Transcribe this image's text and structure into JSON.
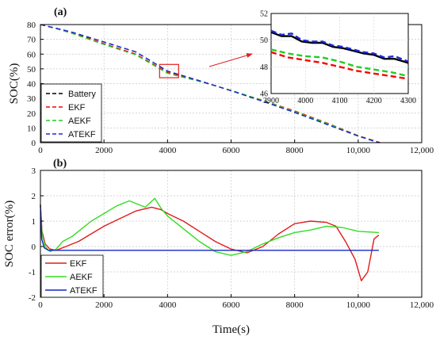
{
  "x_title": "Time(s)",
  "chart_data": [
    {
      "type": "line",
      "panel_label": "(a)",
      "ylabel": "SOC(%)",
      "xlim": [
        0,
        12000
      ],
      "ylim": [
        0,
        80
      ],
      "x_ticks": [
        0,
        2000,
        4000,
        6000,
        8000,
        10000,
        12000
      ],
      "x_tick_labels": [
        "0",
        "2000",
        "4000",
        "6000",
        "8000",
        "10,000",
        "12,000"
      ],
      "y_ticks": [
        0,
        10,
        20,
        30,
        40,
        50,
        60,
        70,
        80
      ],
      "y_tick_labels": [
        "0",
        "10",
        "20",
        "30",
        "40",
        "50",
        "60",
        "70",
        "80"
      ],
      "grid": true,
      "legend_position": "bottom-left",
      "series": [
        {
          "name": "Battery",
          "color": "#000000",
          "dash": "dashed",
          "x": [
            0,
            500,
            1000,
            2000,
            3000,
            4000,
            5000,
            6000,
            7000,
            8000,
            9000,
            10000,
            10650
          ],
          "y": [
            80,
            77.5,
            74.8,
            68.2,
            61.5,
            48.5,
            42.0,
            35.2,
            28.0,
            20.5,
            12.5,
            4.5,
            0
          ]
        },
        {
          "name": "EKF",
          "color": "#ff0000",
          "dash": "dashed",
          "x": [
            0,
            500,
            1000,
            2000,
            3000,
            4000,
            5000,
            6000,
            7000,
            8000,
            9000,
            10000,
            10700
          ],
          "y": [
            80,
            77.3,
            74.3,
            67.0,
            60.0,
            47.5,
            41.8,
            35.3,
            28.6,
            21.5,
            13.5,
            4.8,
            0
          ]
        },
        {
          "name": "AEKF",
          "color": "#22cc22",
          "dash": "dashed",
          "x": [
            0,
            500,
            1000,
            2000,
            3000,
            4000,
            5000,
            6000,
            7000,
            8000,
            9000,
            10000,
            10650
          ],
          "y": [
            80,
            77.2,
            74.0,
            66.5,
            59.5,
            47.0,
            41.5,
            35.5,
            28.5,
            21.0,
            13.2,
            4.6,
            0
          ]
        },
        {
          "name": "ATEKF",
          "color": "#1a2bd6",
          "dash": "dashed",
          "x": [
            0,
            500,
            1000,
            2000,
            3000,
            4000,
            5000,
            6000,
            7000,
            8000,
            9000,
            10000,
            10650
          ],
          "y": [
            80,
            77.5,
            74.8,
            68.2,
            61.5,
            48.5,
            42.0,
            35.2,
            28.0,
            20.5,
            12.5,
            4.5,
            0
          ]
        }
      ],
      "highlight_box": {
        "x": [
          3750,
          4350
        ],
        "y": [
          44,
          53
        ]
      },
      "inset": {
        "xlim": [
          3900,
          4300
        ],
        "ylim": [
          46,
          52
        ],
        "x_ticks": [
          3900,
          4000,
          4100,
          4200,
          4300
        ],
        "x_tick_labels": [
          "3900",
          "4000",
          "4100",
          "4200",
          "4300"
        ],
        "y_ticks": [
          46,
          48,
          50,
          52
        ],
        "y_tick_labels": [
          "46",
          "48",
          "50",
          "52"
        ],
        "series": [
          {
            "name": "Battery",
            "color": "#000000",
            "dash": "solid",
            "x": [
              3900,
              3930,
              3960,
              3990,
              4020,
              4050,
              4080,
              4110,
              4140,
              4170,
              4200,
              4230,
              4260,
              4300
            ],
            "y": [
              50.6,
              50.3,
              50.3,
              49.9,
              49.8,
              49.8,
              49.5,
              49.4,
              49.2,
              49.0,
              48.9,
              48.6,
              48.6,
              48.3
            ]
          },
          {
            "name": "ATEKF",
            "color": "#1a2bd6",
            "dash": "dashed",
            "x": [
              3900,
              3930,
              3960,
              3990,
              4020,
              4050,
              4080,
              4110,
              4140,
              4170,
              4200,
              4230,
              4260,
              4300
            ],
            "y": [
              50.7,
              50.4,
              50.5,
              50.0,
              49.9,
              49.9,
              49.6,
              49.5,
              49.3,
              49.1,
              49.0,
              48.7,
              48.8,
              48.4
            ]
          },
          {
            "name": "EKF",
            "color": "#ff0000",
            "dash": "dashed",
            "x": [
              3900,
              3950,
              4000,
              4050,
              4100,
              4150,
              4200,
              4250,
              4300
            ],
            "y": [
              49.1,
              48.7,
              48.5,
              48.3,
              48.0,
              47.7,
              47.5,
              47.3,
              47.1
            ]
          },
          {
            "name": "AEKF",
            "color": "#22cc22",
            "dash": "dashed",
            "x": [
              3900,
              3950,
              4000,
              4050,
              4100,
              4150,
              4200,
              4250,
              4300
            ],
            "y": [
              49.3,
              49.0,
              48.8,
              48.7,
              48.4,
              48.0,
              47.8,
              47.6,
              47.3
            ]
          }
        ]
      }
    },
    {
      "type": "line",
      "panel_label": "(b)",
      "ylabel": "SOC error(%)",
      "xlim": [
        0,
        12000
      ],
      "ylim": [
        -2,
        3
      ],
      "x_ticks": [
        0,
        2000,
        4000,
        6000,
        8000,
        10000,
        12000
      ],
      "x_tick_labels": [
        "0",
        "2000",
        "4000",
        "6000",
        "8000",
        "10,000",
        "12,000"
      ],
      "y_ticks": [
        -2,
        -1,
        0,
        1,
        2,
        3
      ],
      "y_tick_labels": [
        "-2",
        "-1",
        "0",
        "1",
        "2",
        "3"
      ],
      "grid": true,
      "legend_position": "bottom-left",
      "series": [
        {
          "name": "EKF",
          "color": "#e21b1b",
          "dash": "solid",
          "x": [
            0,
            50,
            150,
            300,
            500,
            800,
            1200,
            1600,
            2000,
            2500,
            3000,
            3500,
            3800,
            4000,
            4500,
            5000,
            5500,
            6000,
            6500,
            7000,
            7500,
            8000,
            8500,
            9000,
            9300,
            9600,
            9900,
            10100,
            10300,
            10500,
            10650
          ],
          "y": [
            1.65,
            0.6,
            0.1,
            -0.1,
            -0.15,
            0.0,
            0.2,
            0.5,
            0.8,
            1.1,
            1.4,
            1.55,
            1.45,
            1.3,
            1.0,
            0.6,
            0.2,
            -0.1,
            -0.25,
            0.0,
            0.5,
            0.9,
            1.0,
            0.95,
            0.8,
            0.2,
            -0.5,
            -1.35,
            -1.0,
            0.3,
            0.45
          ]
        },
        {
          "name": "AEKF",
          "color": "#33dd22",
          "dash": "solid",
          "x": [
            0,
            50,
            150,
            300,
            500,
            700,
            1000,
            1300,
            1600,
            2000,
            2400,
            2800,
            3000,
            3300,
            3600,
            3800,
            4000,
            4500,
            5000,
            5500,
            6000,
            6500,
            7000,
            7500,
            8000,
            8500,
            9000,
            9500,
            10000,
            10650
          ],
          "y": [
            1.6,
            0.5,
            0.0,
            -0.2,
            -0.1,
            0.2,
            0.4,
            0.7,
            1.0,
            1.3,
            1.6,
            1.8,
            1.7,
            1.55,
            1.9,
            1.5,
            1.2,
            0.7,
            0.2,
            -0.2,
            -0.35,
            -0.2,
            0.1,
            0.35,
            0.55,
            0.65,
            0.8,
            0.75,
            0.6,
            0.55
          ]
        },
        {
          "name": "ATEKF",
          "color": "#1525c8",
          "dash": "solid",
          "x": [
            0,
            40,
            120,
            250,
            400,
            800,
            2000,
            4000,
            6000,
            8000,
            10000,
            10650
          ],
          "y": [
            1.65,
            0.3,
            -0.05,
            -0.15,
            -0.15,
            -0.15,
            -0.15,
            -0.15,
            -0.15,
            -0.15,
            -0.15,
            -0.15
          ]
        }
      ],
      "legend_order": [
        "EKF",
        "AEKF",
        "ATEKF"
      ]
    }
  ]
}
